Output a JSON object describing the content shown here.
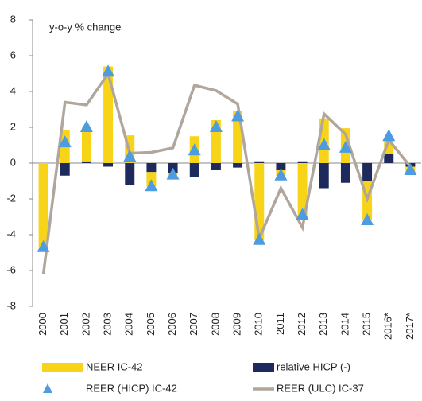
{
  "chart_data": {
    "type": "bar",
    "annotation": "y-o-y % change",
    "categories": [
      "2000",
      "2001",
      "2002",
      "2003",
      "2004",
      "2005",
      "2006",
      "2007",
      "2008",
      "2009",
      "2010",
      "2011",
      "2012",
      "2013",
      "2014",
      "2015",
      "2016*",
      "2017*"
    ],
    "series": [
      {
        "name": "NEER IC-42",
        "kind": "bar",
        "color": "#f7d417",
        "values": [
          -4.7,
          1.85,
          1.9,
          5.4,
          1.55,
          -0.8,
          -0.1,
          1.5,
          2.4,
          2.9,
          -4.3,
          -0.3,
          -3.1,
          2.5,
          1.95,
          -2.2,
          0.8,
          -0.3
        ]
      },
      {
        "name": "relative HICP (-)",
        "kind": "bar",
        "color": "#1f2a5c",
        "values": [
          0,
          -0.7,
          0.1,
          -0.2,
          -1.2,
          -0.5,
          -0.55,
          -0.8,
          -0.4,
          -0.25,
          0.1,
          -0.4,
          0.1,
          -1.4,
          -1.1,
          -1.0,
          0.5,
          -0.2
        ]
      },
      {
        "name": "REER (HICP) IC-42",
        "kind": "scatter",
        "color": "#4d9be0",
        "values": [
          -4.7,
          1.15,
          2.0,
          5.1,
          0.35,
          -1.3,
          -0.65,
          0.7,
          2.0,
          2.6,
          -4.3,
          -0.7,
          -2.9,
          1.0,
          0.85,
          -3.2,
          1.5,
          -0.4
        ]
      },
      {
        "name": "REER (ULC) IC-37",
        "kind": "line",
        "color": "#b1a69c",
        "values": [
          -6.2,
          3.4,
          3.25,
          5.0,
          0.55,
          0.6,
          0.85,
          4.35,
          4.05,
          3.3,
          -4.2,
          -1.4,
          -3.6,
          2.75,
          1.6,
          -2.0,
          1.3,
          -0.2
        ]
      }
    ],
    "ylim": [
      -8,
      8
    ],
    "yticks": [
      -8,
      -6,
      -4,
      -2,
      0,
      2,
      4,
      6,
      8
    ]
  }
}
